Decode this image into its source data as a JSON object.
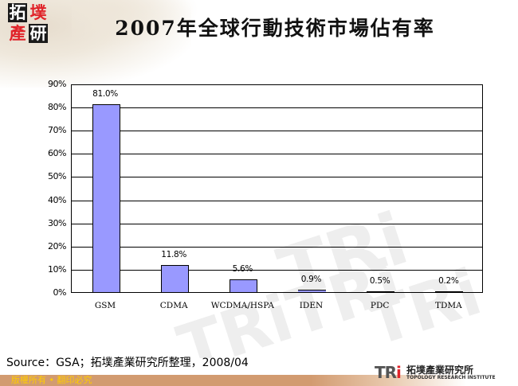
{
  "header": {
    "logo_chars": [
      "拓",
      "墣",
      "產",
      "研"
    ],
    "title": "2007年全球行動技術市場佔有率"
  },
  "chart_data": {
    "type": "bar",
    "title": "2007年全球行動技術市場佔有率",
    "categories": [
      "GSM",
      "CDMA",
      "WCDMA/HSPA",
      "IDEN",
      "PDC",
      "TDMA"
    ],
    "values": [
      81.0,
      11.8,
      5.6,
      0.9,
      0.5,
      0.2
    ],
    "value_labels": [
      "81.0%",
      "11.8%",
      "5.6%",
      "0.9%",
      "0.5%",
      "0.2%"
    ],
    "xlabel": "",
    "ylabel": "",
    "ylim": [
      0,
      90
    ],
    "yticks": [
      "0%",
      "10%",
      "20%",
      "30%",
      "40%",
      "50%",
      "60%",
      "70%",
      "80%",
      "90%"
    ],
    "grid": true,
    "legend": "none",
    "bar_color": "#9999FF"
  },
  "source": "Source：GSA；拓墣產業研究所整理，2008/04",
  "footer": {
    "copyright": "版權所有 • 翻印必究",
    "org_mark": "TRi",
    "org_name_cn": "拓墣產業研究所",
    "org_name_en": "TOPOLOGY RESEARCH INSTITUTE"
  },
  "colors": {
    "bar": "#9999FF",
    "footer_bar": "#D29B70",
    "footer_text": "#FFCC00",
    "logo_red": "#E0242A"
  }
}
